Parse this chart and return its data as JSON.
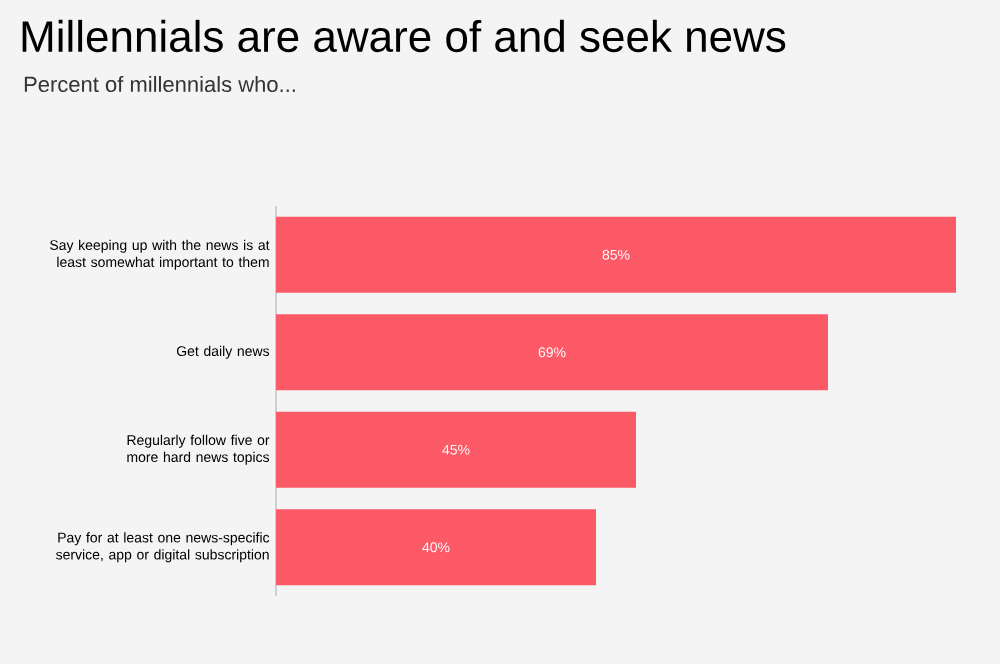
{
  "chart_data": {
    "type": "bar",
    "orientation": "horizontal",
    "title": "Millennials are aware of and seek news",
    "subtitle": "Percent of millennials who...",
    "categories": [
      "Say keeping up with the news is at least somewhat important to them",
      "Get daily news",
      "Regularly follow five or more hard news topics",
      "Pay for at least one news-specific service, app or digital subscription"
    ],
    "values": [
      85,
      69,
      45,
      40
    ],
    "value_labels": [
      "85%",
      "69%",
      "45%",
      "40%"
    ],
    "color": "#fd5a68"
  }
}
